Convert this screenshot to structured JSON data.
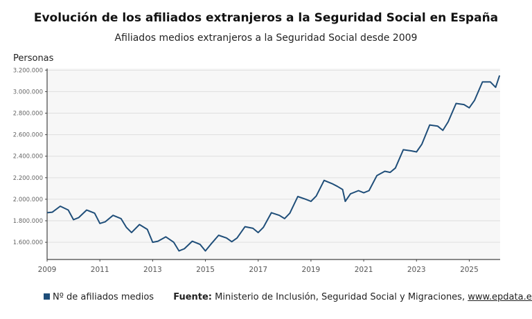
{
  "chart_data": {
    "type": "line",
    "title": "Evolución de los afiliados extranjeros a la Seguridad Social en España",
    "subtitle": "Afiliados medios extranjeros a la Seguridad Social desde 2009",
    "ylabel": "Personas",
    "xlabel": "",
    "xlim": [
      2009,
      2026.17
    ],
    "ylim": [
      1440000,
      3215000
    ],
    "grid": true,
    "legend_position": "bottom-left",
    "x_ticks": [
      2009,
      2011,
      2013,
      2015,
      2017,
      2019,
      2021,
      2023,
      2025
    ],
    "x_tick_labels": [
      "2009",
      "2011",
      "2013",
      "2015",
      "2017",
      "2019",
      "2021",
      "2023",
      "2025"
    ],
    "y_ticks": [
      1600000,
      1800000,
      2000000,
      2200000,
      2400000,
      2600000,
      2800000,
      3000000,
      3200000
    ],
    "y_tick_labels": [
      "1.600.000",
      "1.800.000",
      "2.000.000",
      "2.200.000",
      "2.400.000",
      "2.600.000",
      "2.800.000",
      "3.000.000",
      "3.200.000"
    ],
    "series": [
      {
        "name": "Nº de afiliados medios",
        "color": "#1f4e79",
        "x": [
          2009.0,
          2009.2,
          2009.5,
          2009.8,
          2010.0,
          2010.2,
          2010.5,
          2010.8,
          2011.0,
          2011.2,
          2011.5,
          2011.8,
          2012.0,
          2012.2,
          2012.5,
          2012.8,
          2013.0,
          2013.2,
          2013.5,
          2013.8,
          2014.0,
          2014.2,
          2014.5,
          2014.8,
          2015.0,
          2015.2,
          2015.5,
          2015.8,
          2016.0,
          2016.2,
          2016.5,
          2016.8,
          2017.0,
          2017.2,
          2017.5,
          2017.8,
          2018.0,
          2018.2,
          2018.5,
          2018.8,
          2019.0,
          2019.2,
          2019.5,
          2019.8,
          2020.0,
          2020.2,
          2020.3,
          2020.5,
          2020.8,
          2021.0,
          2021.2,
          2021.5,
          2021.8,
          2022.0,
          2022.2,
          2022.5,
          2022.8,
          2023.0,
          2023.2,
          2023.5,
          2023.8,
          2024.0,
          2024.2,
          2024.5,
          2024.8,
          2025.0,
          2025.2,
          2025.5,
          2025.8,
          2026.0,
          2026.15
        ],
        "values": [
          1875000,
          1880000,
          1935000,
          1900000,
          1810000,
          1830000,
          1900000,
          1870000,
          1775000,
          1790000,
          1850000,
          1820000,
          1740000,
          1690000,
          1765000,
          1720000,
          1600000,
          1610000,
          1650000,
          1600000,
          1520000,
          1540000,
          1610000,
          1580000,
          1520000,
          1580000,
          1665000,
          1640000,
          1605000,
          1640000,
          1745000,
          1730000,
          1690000,
          1740000,
          1875000,
          1850000,
          1820000,
          1870000,
          2025000,
          2000000,
          1980000,
          2030000,
          2175000,
          2145000,
          2120000,
          2090000,
          1980000,
          2050000,
          2080000,
          2060000,
          2080000,
          2220000,
          2260000,
          2250000,
          2290000,
          2460000,
          2450000,
          2440000,
          2510000,
          2690000,
          2680000,
          2640000,
          2720000,
          2890000,
          2880000,
          2850000,
          2920000,
          3090000,
          3090000,
          3040000,
          3150000
        ]
      }
    ]
  },
  "footer": {
    "legend_label": "Nº de afiliados medios",
    "source_label": "Fuente:",
    "source_text": " Ministerio de Inclusión, Seguridad Social y Migraciones, ",
    "source_link": "www.epdata.es"
  }
}
